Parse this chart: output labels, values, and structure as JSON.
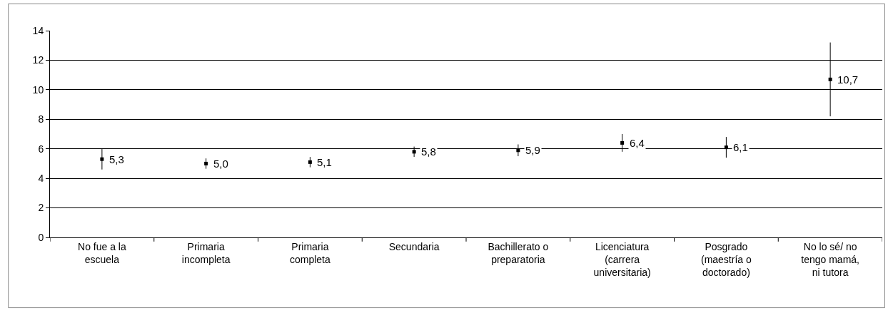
{
  "chart_data": {
    "type": "scatter",
    "categories": [
      "No fue a la\nescuela",
      "Primaria\nincompleta",
      "Primaria\ncompleta",
      "Secundaria",
      "Bachillerato o\npreparatoria",
      "Licenciatura\n(carrera\nuniversitaria)",
      "Posgrado\n(maestría o\ndoctorado)",
      "No lo sé/ no\ntengo mamá,\nni tutora"
    ],
    "values": [
      5.3,
      5.0,
      5.1,
      5.8,
      5.9,
      6.4,
      6.1,
      10.7
    ],
    "errors": [
      0.7,
      0.35,
      0.35,
      0.35,
      0.4,
      0.6,
      0.7,
      2.5
    ],
    "value_labels": [
      "5,3",
      "5,0",
      "5,1",
      "5,8",
      "5,9",
      "6,4",
      "6,1",
      "10,7"
    ],
    "color": "#000000",
    "ylim": [
      0,
      14
    ],
    "yticks": [
      0,
      2,
      4,
      6,
      8,
      10,
      12,
      14
    ],
    "grid": "y",
    "marker": "square"
  }
}
